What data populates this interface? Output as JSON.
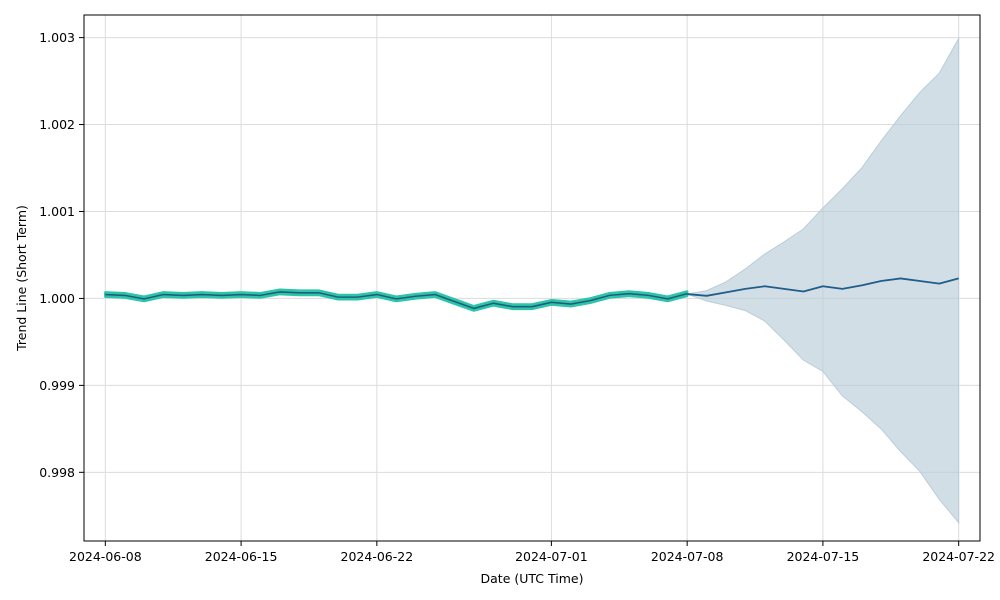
{
  "chart_data": {
    "type": "line",
    "title": "",
    "xlabel": "Date (UTC Time)",
    "ylabel": "Trend Line (Short Term)",
    "xlim": [
      "2024-06-06.9",
      "2024-07-23.1"
    ],
    "ylim": [
      0.99721,
      1.00326
    ],
    "x_ticks": [
      "2024-06-08",
      "2024-06-15",
      "2024-06-22",
      "2024-07-01",
      "2024-07-08",
      "2024-07-15",
      "2024-07-22"
    ],
    "y_ticks": [
      "0.998",
      "0.999",
      "1.000",
      "1.001",
      "1.002",
      "1.003"
    ],
    "grid": true,
    "colors": {
      "history_band": "#2ec4a6",
      "history_line": "#1a5e80",
      "forecast_line": "#1f5d8a",
      "forecast_band": "#b9cdd9"
    },
    "series": [
      {
        "role": "history_band",
        "x": [
          "2024-06-08",
          "2024-06-09",
          "2024-06-10",
          "2024-06-11",
          "2024-06-12",
          "2024-06-13",
          "2024-06-14",
          "2024-06-15",
          "2024-06-16",
          "2024-06-17",
          "2024-06-18",
          "2024-06-19",
          "2024-06-20",
          "2024-06-21",
          "2024-06-22",
          "2024-06-23",
          "2024-06-24",
          "2024-06-25",
          "2024-06-26",
          "2024-06-27",
          "2024-06-28",
          "2024-06-29",
          "2024-06-30",
          "2024-07-01",
          "2024-07-02",
          "2024-07-03",
          "2024-07-04",
          "2024-07-05",
          "2024-07-06",
          "2024-07-07",
          "2024-07-08"
        ],
        "lower": [
          1.00002,
          1.00001,
          0.99997,
          1.00002,
          1.00001,
          1.00002,
          1.00001,
          1.00002,
          1.00001,
          1.00005,
          1.00004,
          1.00004,
          0.99999,
          0.99999,
          1.00002,
          0.99997,
          1.0,
          1.00002,
          0.99994,
          0.99986,
          0.99992,
          0.99988,
          0.99988,
          0.99993,
          0.99991,
          0.99995,
          1.00001,
          1.00003,
          1.00001,
          0.99997,
          1.00003
        ],
        "upper": [
          1.00007,
          1.00006,
          1.00002,
          1.00007,
          1.00006,
          1.00007,
          1.00006,
          1.00007,
          1.00006,
          1.0001,
          1.00009,
          1.00009,
          1.00004,
          1.00004,
          1.00007,
          1.00002,
          1.00005,
          1.00007,
          0.99999,
          0.99991,
          0.99997,
          0.99993,
          0.99993,
          0.99998,
          0.99996,
          1.0,
          1.00006,
          1.00008,
          1.00006,
          1.00002,
          1.00008
        ]
      },
      {
        "role": "history_line",
        "x": [
          "2024-06-08",
          "2024-06-09",
          "2024-06-10",
          "2024-06-11",
          "2024-06-12",
          "2024-06-13",
          "2024-06-14",
          "2024-06-15",
          "2024-06-16",
          "2024-06-17",
          "2024-06-18",
          "2024-06-19",
          "2024-06-20",
          "2024-06-21",
          "2024-06-22",
          "2024-06-23",
          "2024-06-24",
          "2024-06-25",
          "2024-06-26",
          "2024-06-27",
          "2024-06-28",
          "2024-06-29",
          "2024-06-30",
          "2024-07-01",
          "2024-07-02",
          "2024-07-03",
          "2024-07-04",
          "2024-07-05",
          "2024-07-06",
          "2024-07-07",
          "2024-07-08"
        ],
        "y": [
          1.000045,
          1.000035,
          0.999995,
          1.000045,
          1.000035,
          1.000045,
          1.000035,
          1.000045,
          1.000035,
          1.000075,
          1.000065,
          1.000065,
          1.000015,
          1.000015,
          1.000045,
          0.999995,
          1.000025,
          1.000045,
          0.999965,
          0.999885,
          0.999945,
          0.999905,
          0.999905,
          0.999955,
          0.999935,
          0.999975,
          1.000035,
          1.000055,
          1.000035,
          0.999995,
          1.000055
        ]
      },
      {
        "role": "forecast_line",
        "x": [
          "2024-07-08",
          "2024-07-09",
          "2024-07-10",
          "2024-07-11",
          "2024-07-12",
          "2024-07-13",
          "2024-07-14",
          "2024-07-15",
          "2024-07-16",
          "2024-07-17",
          "2024-07-18",
          "2024-07-19",
          "2024-07-20",
          "2024-07-21",
          "2024-07-22"
        ],
        "y": [
          1.00005,
          1.00003,
          1.00007,
          1.00011,
          1.00014,
          1.00011,
          1.00008,
          1.00014,
          1.00011,
          1.00015,
          1.0002,
          1.00023,
          1.0002,
          1.00017,
          1.00023
        ]
      },
      {
        "role": "forecast_band",
        "x": [
          "2024-07-08",
          "2024-07-09",
          "2024-07-10",
          "2024-07-11",
          "2024-07-12",
          "2024-07-13",
          "2024-07-14",
          "2024-07-15",
          "2024-07-16",
          "2024-07-17",
          "2024-07-18",
          "2024-07-19",
          "2024-07-20",
          "2024-07-21",
          "2024-07-22"
        ],
        "lower": [
          1.00005,
          0.99997,
          0.99992,
          0.99986,
          0.99974,
          0.99952,
          0.99929,
          0.99916,
          0.99888,
          0.9987,
          0.9985,
          0.99824,
          0.99801,
          0.99769,
          0.99742
        ],
        "upper": [
          1.00005,
          1.00009,
          1.00019,
          1.00034,
          1.00051,
          1.00065,
          1.0008,
          1.00104,
          1.00126,
          1.0015,
          1.00181,
          1.0021,
          1.00237,
          1.00259,
          1.00299
        ]
      }
    ]
  }
}
